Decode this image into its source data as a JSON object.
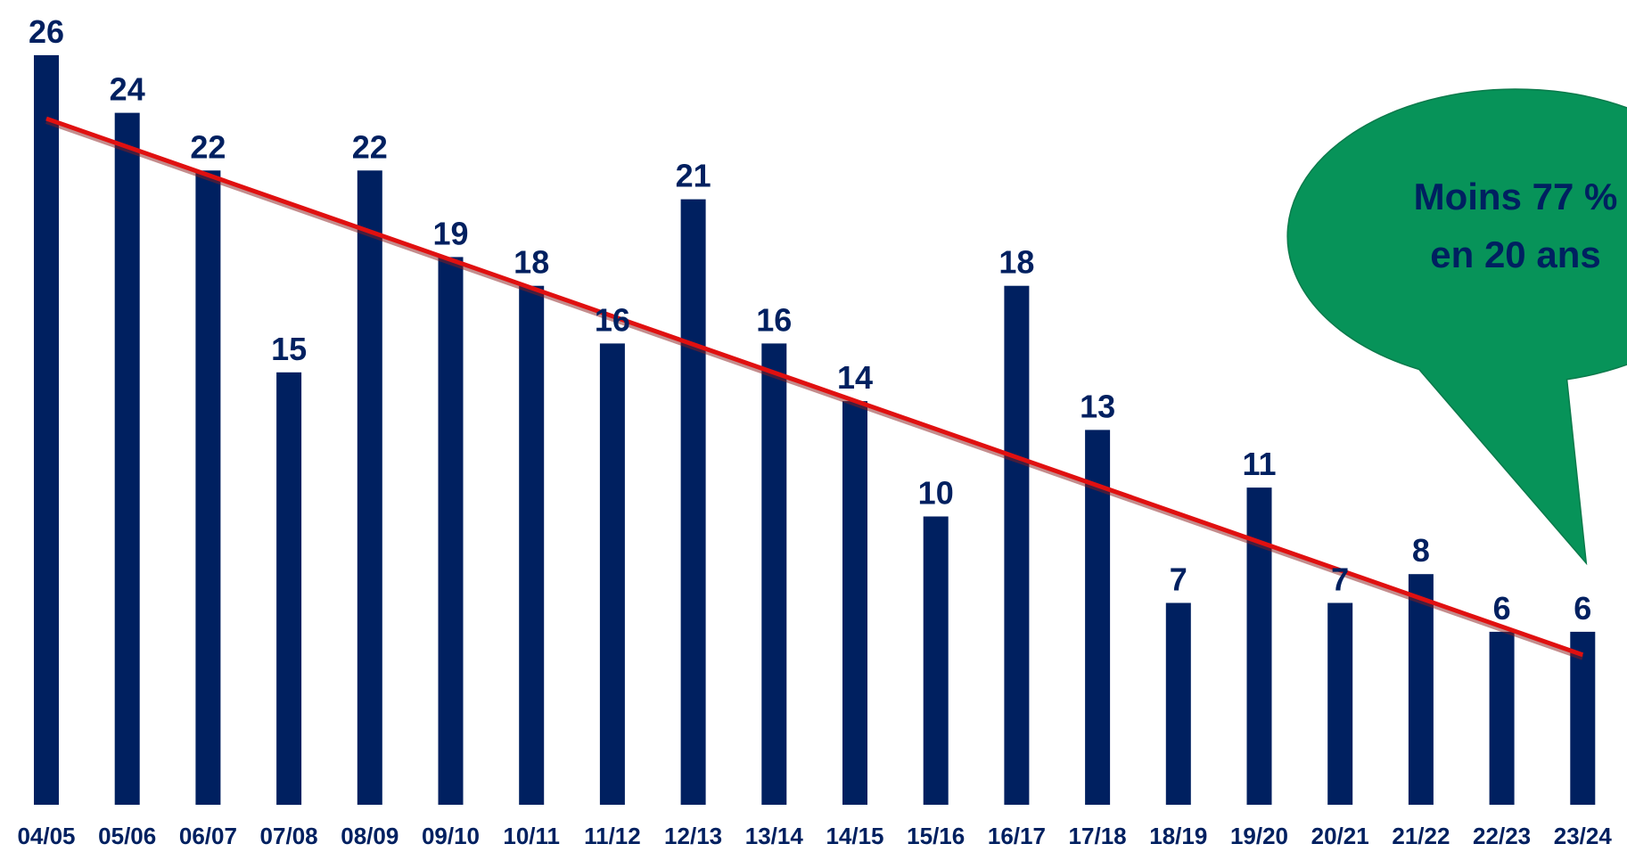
{
  "chart_data": {
    "type": "bar",
    "categories": [
      "04/05",
      "05/06",
      "06/07",
      "07/08",
      "08/09",
      "09/10",
      "10/11",
      "11/12",
      "12/13",
      "13/14",
      "14/15",
      "15/16",
      "16/17",
      "17/18",
      "18/19",
      "19/20",
      "20/21",
      "21/22",
      "22/23",
      "23/24"
    ],
    "values": [
      26,
      24,
      22,
      15,
      22,
      19,
      18,
      16,
      21,
      16,
      14,
      10,
      18,
      13,
      7,
      11,
      7,
      8,
      6,
      6
    ],
    "trendline": {
      "start": 23.8,
      "end": 5.2,
      "color": "#E01010"
    },
    "title": "",
    "xlabel": "",
    "ylabel": "",
    "ylim": [
      0,
      28
    ],
    "grid": false,
    "bar_color": "#002060",
    "label_color": "#002060",
    "annotation": {
      "lines": [
        "Moins 77 %",
        "en 20 ans"
      ],
      "fill": "#079359",
      "text_color": "#002060"
    }
  }
}
